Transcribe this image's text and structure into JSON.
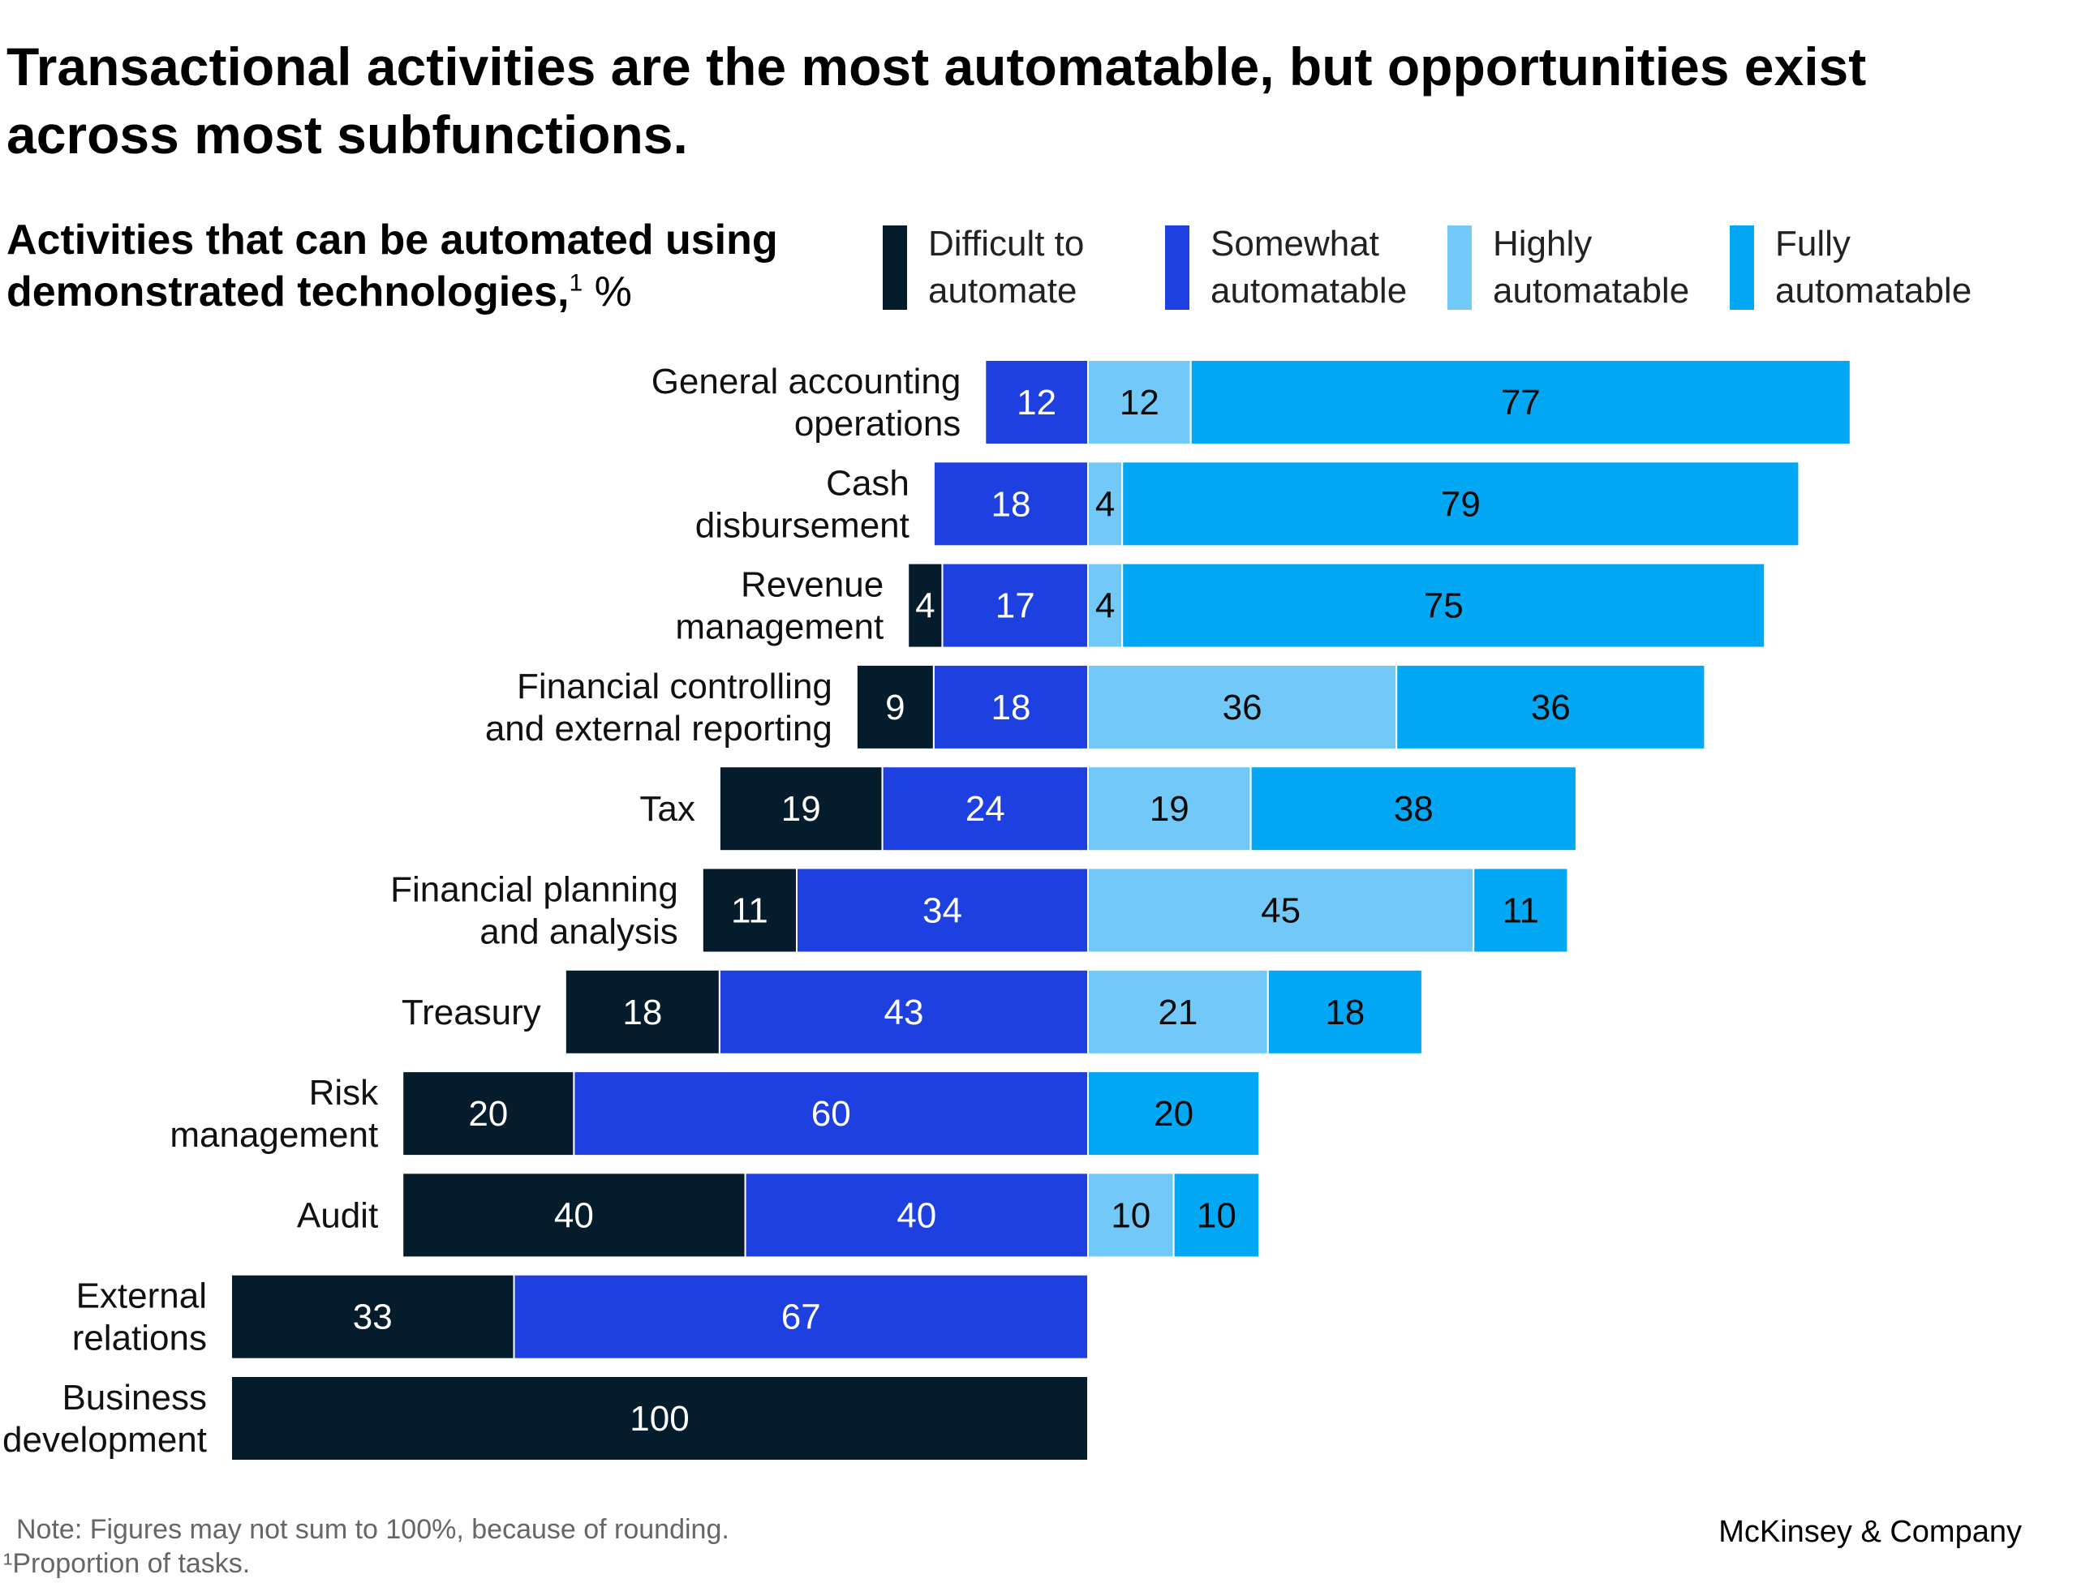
{
  "title": "Transactional activities are the most automatable, but opportunities exist across most subfunctions.",
  "subtitle": {
    "text": "Activities that can be automated using demonstrated technologies,",
    "sup": "1",
    "unit": " %"
  },
  "legend": [
    {
      "label": "Difficult to automate",
      "color": "#051c2c"
    },
    {
      "label": "Somewhat automatable",
      "color": "#1f40e0"
    },
    {
      "label": "Highly automatable",
      "color": "#72c9f8"
    },
    {
      "label": "Fully automatable",
      "color": "#03a8f4"
    }
  ],
  "chart_data": {
    "type": "bar",
    "orientation": "horizontal",
    "stacked": true,
    "layout": "diverging",
    "categories": [
      "General accounting operations",
      "Cash disbursement",
      "Revenue management",
      "Financial controlling and external reporting",
      "Tax",
      "Financial planning and analysis",
      "Treasury",
      "Risk management",
      "Audit",
      "External relations",
      "Business development"
    ],
    "series": [
      {
        "name": "Difficult to automate",
        "color": "#051c2c",
        "side": "left",
        "values": [
          0,
          0,
          4,
          9,
          19,
          11,
          18,
          20,
          40,
          33,
          100
        ]
      },
      {
        "name": "Somewhat automatable",
        "color": "#1f40e0",
        "side": "left",
        "values": [
          12,
          18,
          17,
          18,
          24,
          34,
          43,
          60,
          40,
          67,
          0
        ]
      },
      {
        "name": "Highly automatable",
        "color": "#72c9f8",
        "side": "right",
        "values": [
          12,
          4,
          4,
          36,
          19,
          45,
          21,
          0,
          10,
          0,
          0
        ]
      },
      {
        "name": "Fully automatable",
        "color": "#03a8f4",
        "side": "right",
        "values": [
          77,
          79,
          75,
          36,
          38,
          11,
          18,
          20,
          10,
          0,
          0
        ]
      }
    ],
    "xlabel": "",
    "ylabel": "",
    "grid": false,
    "legend_position": "top"
  },
  "footer": {
    "note": "Note: Figures may not sum to 100%, because of rounding.",
    "footnote": "¹Proportion of tasks.",
    "brand": "McKinsey & Company"
  }
}
